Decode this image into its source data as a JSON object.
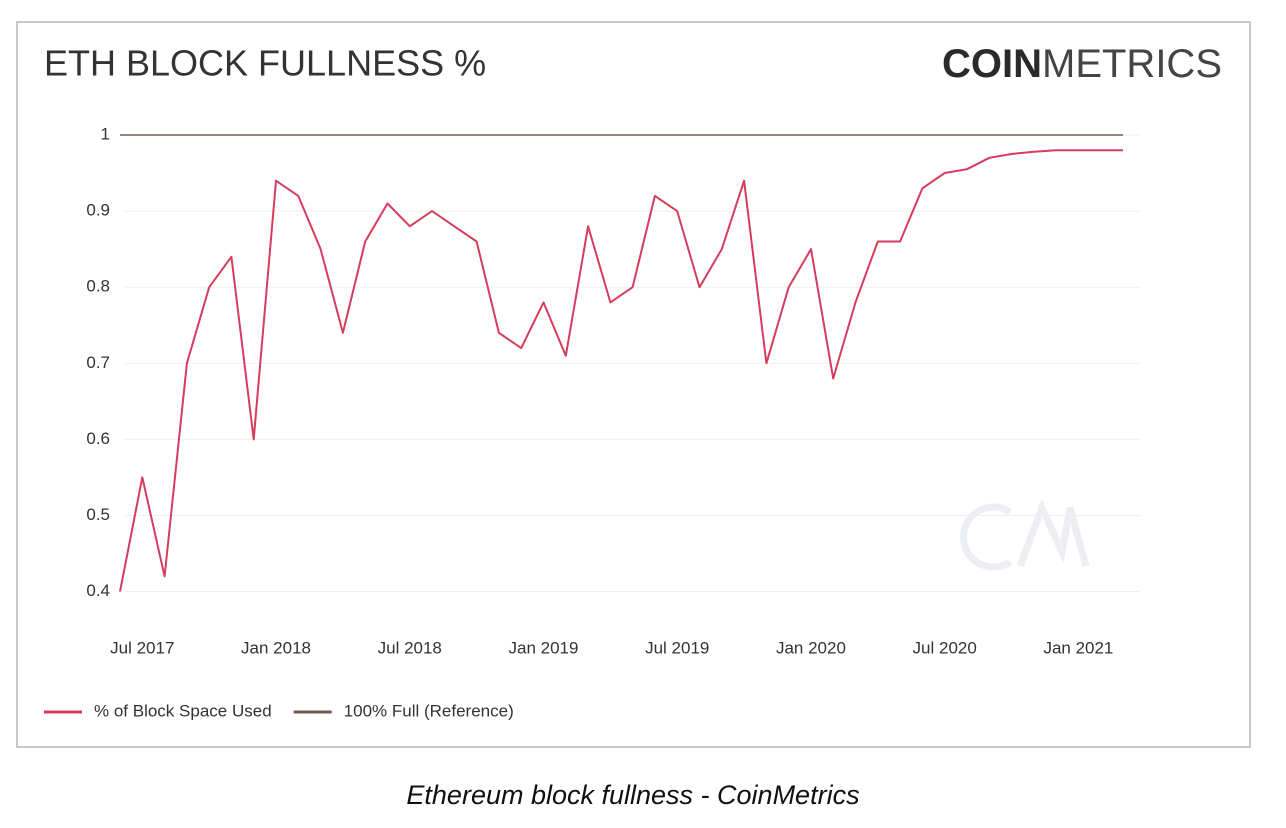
{
  "chart_data": {
    "type": "line",
    "title": "ETH BLOCK FULLNESS %",
    "brand": {
      "bold": "COIN",
      "light": "METRICS"
    },
    "caption": "Ethereum block fullness - CoinMetrics",
    "x": [
      "2017-06",
      "2017-07",
      "2017-08",
      "2017-09",
      "2017-10",
      "2017-11",
      "2017-12",
      "2018-01",
      "2018-02",
      "2018-03",
      "2018-04",
      "2018-05",
      "2018-06",
      "2018-07",
      "2018-08",
      "2018-09",
      "2018-10",
      "2018-11",
      "2018-12",
      "2019-01",
      "2019-02",
      "2019-03",
      "2019-04",
      "2019-05",
      "2019-06",
      "2019-07",
      "2019-08",
      "2019-09",
      "2019-10",
      "2019-11",
      "2019-12",
      "2020-01",
      "2020-02",
      "2020-03",
      "2020-04",
      "2020-05",
      "2020-06",
      "2020-07",
      "2020-08",
      "2020-09",
      "2020-10",
      "2020-11",
      "2020-12",
      "2021-01",
      "2021-02",
      "2021-03"
    ],
    "series": [
      {
        "name": "% of Block Space Used",
        "color": "#d63c5b",
        "values": [
          0.4,
          0.55,
          0.42,
          0.7,
          0.8,
          0.84,
          0.6,
          0.94,
          0.92,
          0.85,
          0.74,
          0.86,
          0.91,
          0.88,
          0.9,
          0.88,
          0.86,
          0.74,
          0.72,
          0.78,
          0.71,
          0.88,
          0.78,
          0.8,
          0.92,
          0.9,
          0.8,
          0.85,
          0.94,
          0.7,
          0.8,
          0.85,
          0.68,
          0.78,
          0.86,
          0.86,
          0.93,
          0.95,
          0.955,
          0.97,
          0.975,
          0.978,
          0.98,
          0.98,
          0.98,
          0.98
        ]
      },
      {
        "name": "100% Full (Reference)",
        "color": "#6e5a50",
        "values": [
          1,
          1,
          1,
          1,
          1,
          1,
          1,
          1,
          1,
          1,
          1,
          1,
          1,
          1,
          1,
          1,
          1,
          1,
          1,
          1,
          1,
          1,
          1,
          1,
          1,
          1,
          1,
          1,
          1,
          1,
          1,
          1,
          1,
          1,
          1,
          1,
          1,
          1,
          1,
          1,
          1,
          1,
          1,
          1,
          1,
          1
        ]
      }
    ],
    "xlim": [
      "2017-06",
      "2021-03"
    ],
    "xticks": [
      {
        "value": "2017-07",
        "label": "Jul 2017"
      },
      {
        "value": "2018-01",
        "label": "Jan 2018"
      },
      {
        "value": "2018-07",
        "label": "Jul 2018"
      },
      {
        "value": "2019-01",
        "label": "Jan 2019"
      },
      {
        "value": "2019-07",
        "label": "Jul 2019"
      },
      {
        "value": "2020-01",
        "label": "Jan 2020"
      },
      {
        "value": "2020-07",
        "label": "Jul 2020"
      },
      {
        "value": "2021-01",
        "label": "Jan 2021"
      }
    ],
    "ylim": [
      0.36,
      1
    ],
    "yticks": [
      0.4,
      0.5,
      0.6,
      0.7,
      0.8,
      0.9,
      1
    ],
    "grid": true
  }
}
